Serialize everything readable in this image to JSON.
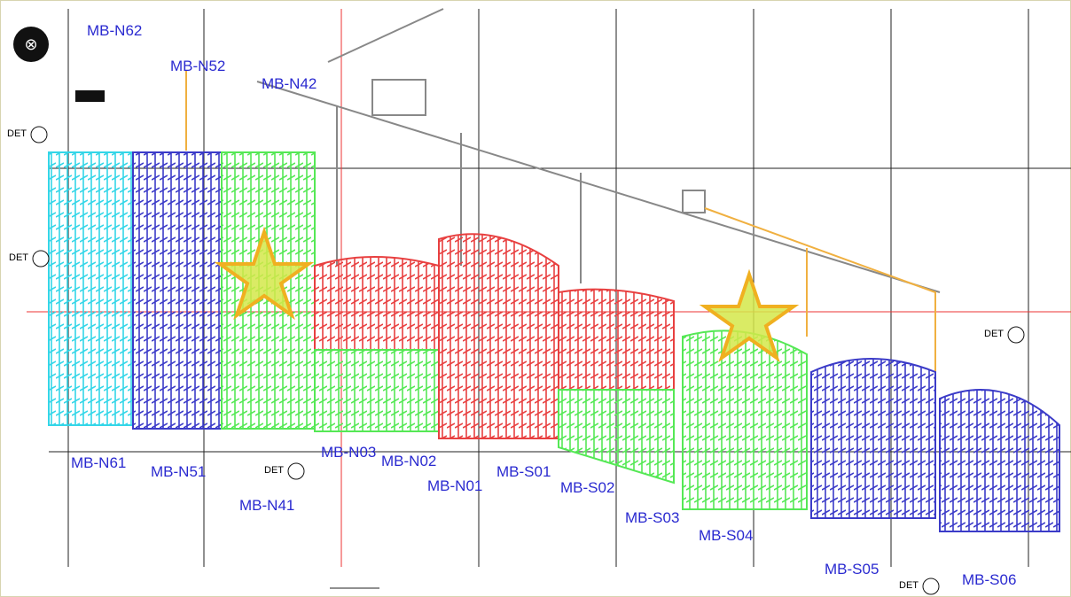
{
  "labels": [
    "MB-N62",
    "MB-N52",
    "MB-N42",
    "MB-N61",
    "MB-N51",
    "MB-N41",
    "MB-N03",
    "MB-N02",
    "MB-N01",
    "MB-S01",
    "MB-S02",
    "MB-S03",
    "MB-S04",
    "MB-S05",
    "MB-S06"
  ],
  "det_markers": [
    "DET",
    "DET",
    "DET",
    "DET",
    "DET"
  ]
}
